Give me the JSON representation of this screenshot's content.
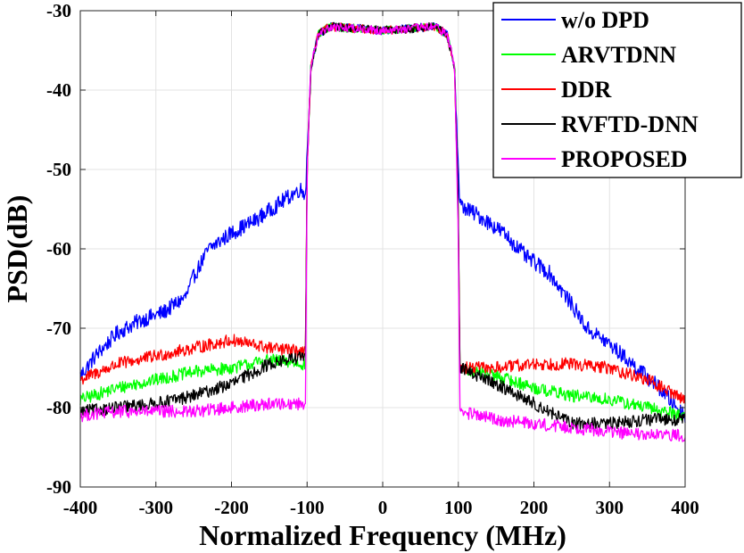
{
  "chart_data": {
    "type": "line",
    "title": "",
    "xlabel": "Normalized Frequency (MHz)",
    "ylabel": "PSD(dB)",
    "xlim": [
      -400,
      400
    ],
    "ylim": [
      -90,
      -30
    ],
    "xticks": [
      -400,
      -300,
      -200,
      -100,
      0,
      100,
      200,
      300,
      400
    ],
    "yticks": [
      -30,
      -40,
      -50,
      -60,
      -70,
      -80,
      -90
    ],
    "xtick_labels": [
      "-400",
      "-300",
      "-200",
      "-100",
      "0",
      "100",
      "200",
      "300",
      "400"
    ],
    "ytick_labels": [
      "-30",
      "-40",
      "-50",
      "-60",
      "-70",
      "-80",
      "-90"
    ],
    "grid": true,
    "legend_position": "top-right",
    "series": [
      {
        "name": "w/o DPD",
        "color": "#0000ff",
        "noise": 1.0,
        "points": [
          [
            -400,
            -76
          ],
          [
            -380,
            -73.5
          ],
          [
            -350,
            -70.5
          ],
          [
            -320,
            -69
          ],
          [
            -290,
            -68
          ],
          [
            -260,
            -66
          ],
          [
            -250,
            -63.5
          ],
          [
            -230,
            -60
          ],
          [
            -200,
            -58
          ],
          [
            -170,
            -56.5
          ],
          [
            -140,
            -54.5
          ],
          [
            -110,
            -52.5
          ],
          [
            -102,
            -53
          ],
          [
            -100,
            -48
          ],
          [
            -95,
            -37
          ],
          [
            -85,
            -33
          ],
          [
            -70,
            -32
          ],
          [
            0,
            -32.5
          ],
          [
            70,
            -32
          ],
          [
            85,
            -33
          ],
          [
            95,
            -37
          ],
          [
            100,
            -50
          ],
          [
            102,
            -54.5
          ],
          [
            130,
            -56
          ],
          [
            160,
            -58
          ],
          [
            190,
            -61
          ],
          [
            220,
            -63
          ],
          [
            250,
            -67
          ],
          [
            270,
            -70
          ],
          [
            300,
            -72
          ],
          [
            330,
            -74.5
          ],
          [
            360,
            -77
          ],
          [
            400,
            -81
          ]
        ]
      },
      {
        "name": "ARVTDNN",
        "color": "#00ff00",
        "noise": 0.8,
        "points": [
          [
            -400,
            -79
          ],
          [
            -350,
            -77.5
          ],
          [
            -300,
            -76.5
          ],
          [
            -250,
            -75.5
          ],
          [
            -200,
            -75
          ],
          [
            -150,
            -74
          ],
          [
            -102,
            -74.5
          ],
          [
            -100,
            -50
          ],
          [
            -95,
            -37
          ],
          [
            -85,
            -33
          ],
          [
            -70,
            -32
          ],
          [
            0,
            -32.5
          ],
          [
            70,
            -32
          ],
          [
            85,
            -33
          ],
          [
            95,
            -37
          ],
          [
            100,
            -55
          ],
          [
            102,
            -75
          ],
          [
            150,
            -76
          ],
          [
            200,
            -77.5
          ],
          [
            250,
            -78.5
          ],
          [
            300,
            -79
          ],
          [
            350,
            -80
          ],
          [
            400,
            -81
          ]
        ]
      },
      {
        "name": "DDR",
        "color": "#ff0000",
        "noise": 0.8,
        "points": [
          [
            -400,
            -76.5
          ],
          [
            -350,
            -74.5
          ],
          [
            -300,
            -73.5
          ],
          [
            -250,
            -72.5
          ],
          [
            -200,
            -71.5
          ],
          [
            -150,
            -72.5
          ],
          [
            -102,
            -73
          ],
          [
            -100,
            -50
          ],
          [
            -95,
            -37
          ],
          [
            -85,
            -33
          ],
          [
            -70,
            -32
          ],
          [
            0,
            -32.5
          ],
          [
            70,
            -32
          ],
          [
            85,
            -33
          ],
          [
            95,
            -37
          ],
          [
            100,
            -55
          ],
          [
            102,
            -75
          ],
          [
            150,
            -75
          ],
          [
            200,
            -74.5
          ],
          [
            250,
            -74.5
          ],
          [
            300,
            -75
          ],
          [
            350,
            -76.5
          ],
          [
            400,
            -79
          ]
        ]
      },
      {
        "name": "RVFTD-DNN",
        "color": "#000000",
        "noise": 0.8,
        "points": [
          [
            -400,
            -80.5
          ],
          [
            -350,
            -80
          ],
          [
            -300,
            -79.5
          ],
          [
            -250,
            -78.5
          ],
          [
            -200,
            -77
          ],
          [
            -150,
            -74.5
          ],
          [
            -102,
            -73.5
          ],
          [
            -100,
            -50
          ],
          [
            -95,
            -37
          ],
          [
            -85,
            -33
          ],
          [
            -70,
            -32
          ],
          [
            0,
            -32.5
          ],
          [
            70,
            -32
          ],
          [
            85,
            -33
          ],
          [
            95,
            -37
          ],
          [
            100,
            -55
          ],
          [
            102,
            -75
          ],
          [
            150,
            -77
          ],
          [
            200,
            -79.5
          ],
          [
            250,
            -82
          ],
          [
            300,
            -82
          ],
          [
            350,
            -81.5
          ],
          [
            400,
            -81.5
          ]
        ]
      },
      {
        "name": "PROPOSED",
        "color": "#ff00ff",
        "noise": 0.8,
        "points": [
          [
            -400,
            -81
          ],
          [
            -350,
            -80.5
          ],
          [
            -300,
            -80.5
          ],
          [
            -250,
            -80.5
          ],
          [
            -200,
            -80
          ],
          [
            -150,
            -79.5
          ],
          [
            -102,
            -79.5
          ],
          [
            -100,
            -50
          ],
          [
            -95,
            -37
          ],
          [
            -85,
            -33
          ],
          [
            -70,
            -32
          ],
          [
            0,
            -32.5
          ],
          [
            70,
            -32
          ],
          [
            85,
            -33
          ],
          [
            95,
            -37
          ],
          [
            100,
            -58
          ],
          [
            102,
            -80.5
          ],
          [
            150,
            -81.5
          ],
          [
            200,
            -82
          ],
          [
            250,
            -82.5
          ],
          [
            300,
            -83
          ],
          [
            350,
            -83.5
          ],
          [
            400,
            -83.5
          ]
        ]
      }
    ]
  }
}
